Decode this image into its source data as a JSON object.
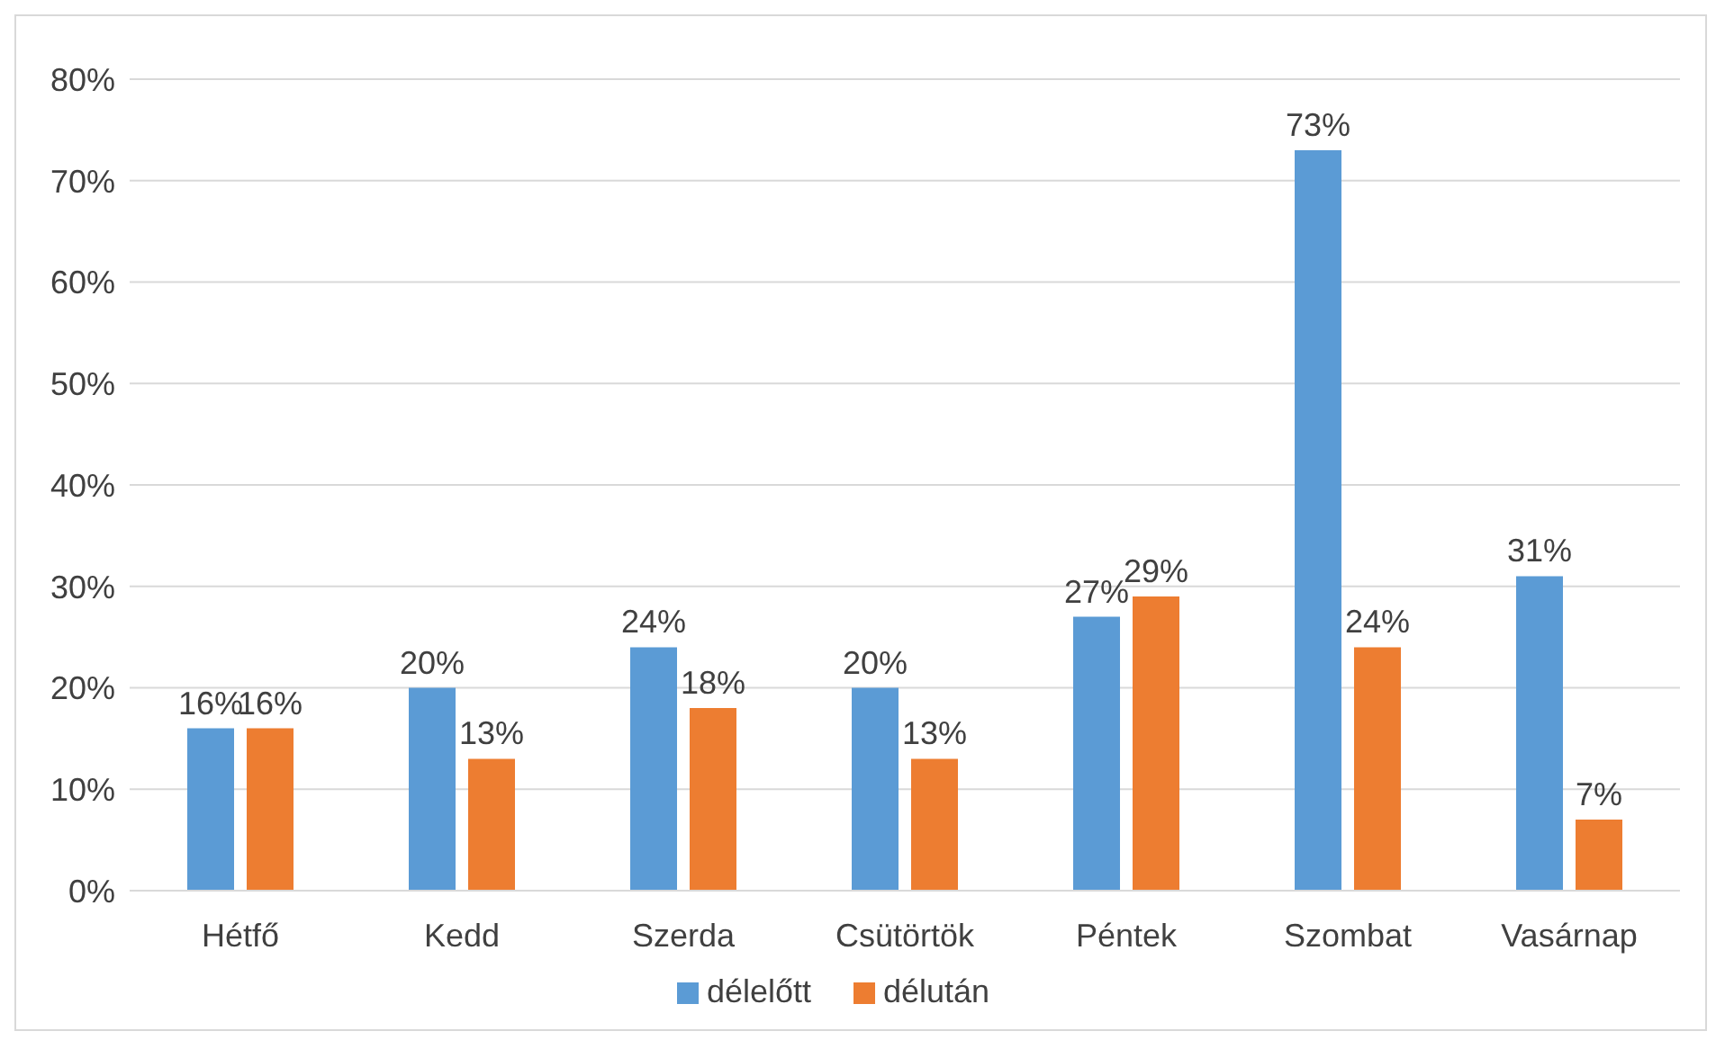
{
  "chart_data": {
    "type": "bar",
    "categories": [
      "Hétfő",
      "Kedd",
      "Szerda",
      "Csütörtök",
      "Péntek",
      "Szombat",
      "Vasárnap"
    ],
    "series": [
      {
        "name": "délelőtt",
        "color": "#5b9bd5",
        "values": [
          16,
          20,
          24,
          20,
          27,
          73,
          31
        ],
        "value_labels": [
          "16%",
          "20%",
          "24%",
          "20%",
          "27%",
          "73%",
          "31%"
        ]
      },
      {
        "name": "délután",
        "color": "#ed7d31",
        "values": [
          16,
          13,
          18,
          13,
          29,
          24,
          7
        ],
        "value_labels": [
          "16%",
          "13%",
          "18%",
          "13%",
          "29%",
          "24%",
          "7%"
        ]
      }
    ],
    "ylim": [
      0,
      80
    ],
    "yticks": [
      {
        "value": 0,
        "label": "0%"
      },
      {
        "value": 10,
        "label": "10%"
      },
      {
        "value": 20,
        "label": "20%"
      },
      {
        "value": 30,
        "label": "30%"
      },
      {
        "value": 40,
        "label": "40%"
      },
      {
        "value": 50,
        "label": "50%"
      },
      {
        "value": 60,
        "label": "60%"
      },
      {
        "value": 70,
        "label": "70%"
      },
      {
        "value": 80,
        "label": "80%"
      }
    ],
    "grid": "y",
    "legend": "bottom"
  }
}
